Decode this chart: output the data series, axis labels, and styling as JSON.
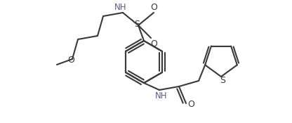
{
  "line_color": "#3a3a3a",
  "bg_color": "#ffffff",
  "lw": 1.5,
  "figsize": [
    4.16,
    1.75
  ],
  "dpi": 100,
  "xlim": [
    0.0,
    4.16
  ],
  "ylim": [
    0.0,
    1.75
  ]
}
